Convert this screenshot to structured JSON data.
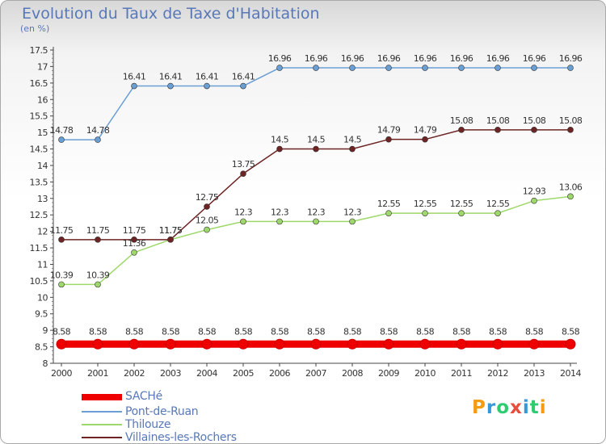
{
  "title": "Evolution du Taux de Taxe d'Habitation",
  "unit": "(en %)",
  "logo": {
    "text": "Proxiti",
    "colors": [
      "#f39c12",
      "#3498db",
      "#2ecc71",
      "#e74c3c",
      "#3498db",
      "#2ecc71",
      "#f39c12"
    ]
  },
  "chart_data": {
    "type": "line",
    "x": [
      "2000",
      "2001",
      "2002",
      "2003",
      "2004",
      "2005",
      "2006",
      "2007",
      "2008",
      "2009",
      "2010",
      "2011",
      "2012",
      "2013",
      "2014"
    ],
    "ylim": [
      8,
      17.5
    ],
    "yticks": [
      "8",
      "8.5",
      "9",
      "9.5",
      "10",
      "10.5",
      "11",
      "11.5",
      "12",
      "12.5",
      "13",
      "13.5",
      "14",
      "14.5",
      "15",
      "15.5",
      "16",
      "16.5",
      "17",
      "17.5"
    ],
    "grid": false,
    "legend_position": "bottom-left",
    "series": [
      {
        "name": "SACHé",
        "color": "#ee0000",
        "width": 9,
        "marker": 6,
        "values": [
          8.58,
          8.58,
          8.58,
          8.58,
          8.58,
          8.58,
          8.58,
          8.58,
          8.58,
          8.58,
          8.58,
          8.58,
          8.58,
          8.58,
          8.58
        ],
        "labels": [
          "8.58",
          "8.58",
          "8.58",
          "8.58",
          "8.58",
          "8.58",
          "8.58",
          "8.58",
          "8.58",
          "8.58",
          "8.58",
          "8.58",
          "8.58",
          "8.58",
          "8.58"
        ]
      },
      {
        "name": "Pont-de-Ruan",
        "color": "#6a9fd4",
        "width": 1.5,
        "marker": 3.5,
        "values": [
          14.78,
          14.78,
          16.41,
          16.41,
          16.41,
          16.41,
          16.96,
          16.96,
          16.96,
          16.96,
          16.96,
          16.96,
          16.96,
          16.96,
          16.96
        ],
        "labels": [
          "14.78",
          "14.78",
          "16.41",
          "16.41",
          "16.41",
          "16.41",
          "16.96",
          "16.96",
          "16.96",
          "16.96",
          "16.96",
          "16.96",
          "16.96",
          "16.96",
          "16.96"
        ]
      },
      {
        "name": "Thilouze",
        "color": "#9ed86a",
        "width": 1.5,
        "marker": 3.5,
        "values": [
          10.39,
          10.39,
          11.36,
          11.75,
          12.05,
          12.3,
          12.3,
          12.3,
          12.3,
          12.55,
          12.55,
          12.55,
          12.55,
          12.93,
          13.06
        ],
        "labels": [
          "10.39",
          "10.39",
          "11.36",
          "11.75",
          "12.05",
          "12.3",
          "12.3",
          "12.3",
          "12.3",
          "12.55",
          "12.55",
          "12.55",
          "12.55",
          "12.93",
          "13.06"
        ]
      },
      {
        "name": "Villaines-les-Rochers",
        "color": "#6e2424",
        "width": 1.5,
        "marker": 3.5,
        "values": [
          11.75,
          11.75,
          11.75,
          11.75,
          12.75,
          13.75,
          14.5,
          14.5,
          14.5,
          14.79,
          14.79,
          15.08,
          15.08,
          15.08,
          15.08
        ],
        "labels": [
          "11.75",
          "11.75",
          "11.75",
          "11.75",
          "12.75",
          "13.75",
          "14.5",
          "14.5",
          "14.5",
          "14.79",
          "14.79",
          "15.08",
          "15.08",
          "15.08",
          "15.08"
        ]
      }
    ]
  }
}
